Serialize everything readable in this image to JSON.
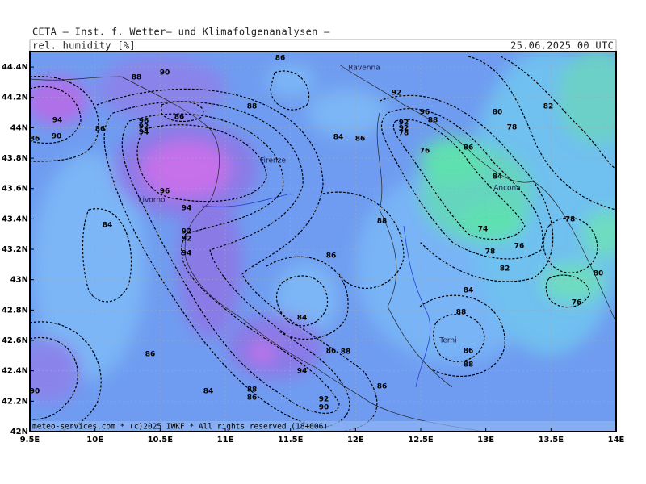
{
  "header": {
    "title": "CETA — Inst. f. Wetter— und Klimafolgenanalysen —",
    "field": "rel. humidity [%]",
    "valid_time": "25.06.2025 00 UTC"
  },
  "map": {
    "lon_ticks": [
      {
        "value": 9.5,
        "label": "9.5E"
      },
      {
        "value": 10,
        "label": "10E"
      },
      {
        "value": 10.5,
        "label": "10.5E"
      },
      {
        "value": 11,
        "label": "11E"
      },
      {
        "value": 11.5,
        "label": "11.5E"
      },
      {
        "value": 12,
        "label": "12E"
      },
      {
        "value": 12.5,
        "label": "12.5E"
      },
      {
        "value": 13,
        "label": "13E"
      },
      {
        "value": 13.5,
        "label": "13.5E"
      },
      {
        "value": 14,
        "label": "14E"
      }
    ],
    "lat_ticks": [
      {
        "value": 42,
        "label": "42N"
      },
      {
        "value": 42.2,
        "label": "42.2N"
      },
      {
        "value": 42.4,
        "label": "42.4N"
      },
      {
        "value": 42.6,
        "label": "42.6N"
      },
      {
        "value": 42.8,
        "label": "42.8N"
      },
      {
        "value": 43,
        "label": "43N"
      },
      {
        "value": 43.2,
        "label": "43.2N"
      },
      {
        "value": 43.4,
        "label": "43.4N"
      },
      {
        "value": 43.6,
        "label": "43.6N"
      },
      {
        "value": 43.8,
        "label": "43.8N"
      },
      {
        "value": 44,
        "label": "44N"
      },
      {
        "value": 44.2,
        "label": "44.2N"
      },
      {
        "value": 44.4,
        "label": "44.4N"
      }
    ],
    "cities": [
      "Ravenna",
      "Firenze",
      "Livorno",
      "Ancona",
      "Terni"
    ],
    "contour_labels": [
      86,
      88,
      90,
      92,
      94,
      90,
      86,
      86,
      88,
      86,
      96,
      92,
      94,
      96,
      88,
      92,
      92,
      78,
      80,
      82,
      78,
      86,
      76,
      84,
      84,
      86,
      96,
      94,
      92,
      92,
      94,
      84,
      88,
      78,
      74,
      76,
      78,
      82,
      80,
      84,
      76,
      86,
      84,
      88,
      86,
      88,
      86,
      86,
      88,
      94,
      84,
      88,
      86,
      92,
      90,
      86,
      90
    ],
    "copyright": "meteo-services.com * (c)2025 IWKF * All rights reserved (18+006)"
  }
}
